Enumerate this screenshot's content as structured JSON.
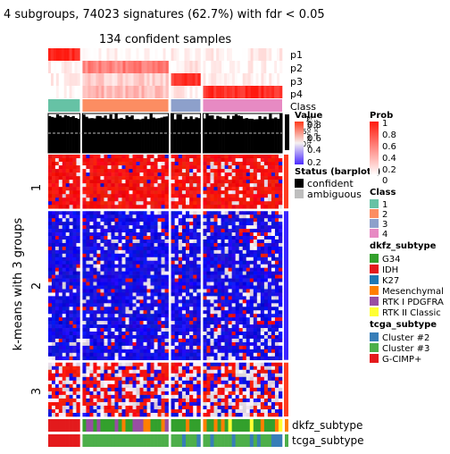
{
  "title": "4 subgroups, 74023 signatures (62.7%) with fdr < 0.05",
  "subtitle": "134 confident samples",
  "chart_data": {
    "type": "heatmap",
    "title": "4 subgroups, 74023 signatures (62.7%) with fdr < 0.05",
    "subtitle": "134 confident samples",
    "row_axis_label": "k-means with 3 groups",
    "row_groups": [
      "1",
      "2",
      "3"
    ],
    "top_annotations": [
      "p1",
      "p2",
      "p3",
      "p4",
      "Class"
    ],
    "bottom_annotations": [
      "dkfz_subtype",
      "tcga_subtype"
    ],
    "silhouette_labels": [
      "Silhouette",
      "score"
    ],
    "silhouette_ticks": [
      "1",
      "0.5",
      "0"
    ],
    "legends": {
      "value": {
        "title": "Value",
        "ticks": [
          "0.8",
          "0.6",
          "0.4",
          "0.2"
        ],
        "colors": [
          "#ff0000",
          "#ffffff",
          "#0000ff"
        ]
      },
      "status": {
        "title": "Status (barplots)",
        "items": [
          {
            "label": "confident",
            "color": "#000000"
          },
          {
            "label": "ambiguous",
            "color": "#bebebe"
          }
        ]
      },
      "prob": {
        "title": "Prob",
        "ticks": [
          "1",
          "0.8",
          "0.6",
          "0.4",
          "0.2",
          "0"
        ],
        "colors": [
          "#ff0000",
          "#ffffff"
        ]
      },
      "class": {
        "title": "Class",
        "items": [
          {
            "label": "1",
            "color": "#66c2a5"
          },
          {
            "label": "2",
            "color": "#fc8d62"
          },
          {
            "label": "3",
            "color": "#8da0cb"
          },
          {
            "label": "4",
            "color": "#e78ac3"
          }
        ]
      },
      "dkfz_subtype": {
        "title": "dkfz_subtype",
        "items": [
          {
            "label": "G34",
            "color": "#33a02c"
          },
          {
            "label": "IDH",
            "color": "#e31a1c"
          },
          {
            "label": "K27",
            "color": "#1f78b4"
          },
          {
            "label": "Mesenchymal",
            "color": "#ff7f00"
          },
          {
            "label": "RTK I PDGFRA",
            "color": "#984ea3"
          },
          {
            "label": "RTK II Classic",
            "color": "#ffff33"
          }
        ]
      },
      "tcga_subtype": {
        "title": "tcga_subtype",
        "items": [
          {
            "label": "Cluster #2",
            "color": "#377eb8"
          },
          {
            "label": "Cluster #3",
            "color": "#4daf4a"
          },
          {
            "label": "G-CIMP+",
            "color": "#e41a1c"
          }
        ]
      }
    },
    "columns": [
      {
        "class": "1",
        "fraction": 0.14
      },
      {
        "class": "2",
        "fraction": 0.38
      },
      {
        "class": "3",
        "fraction": 0.13
      },
      {
        "class": "4",
        "fraction": 0.35
      }
    ],
    "row_group_fractions": [
      0.21,
      0.58,
      0.21
    ]
  }
}
